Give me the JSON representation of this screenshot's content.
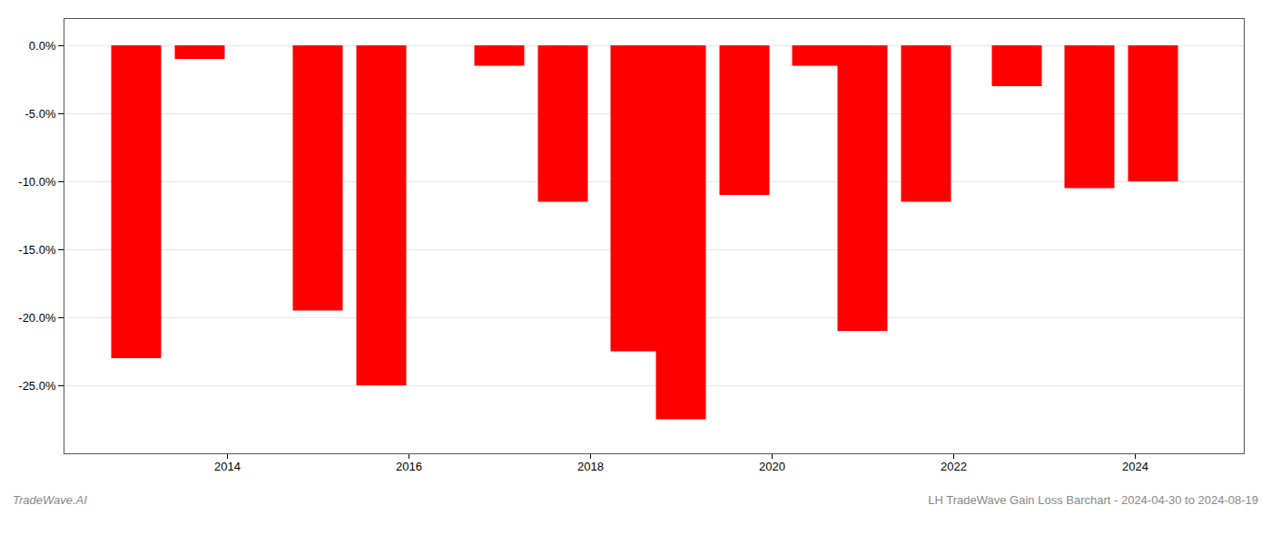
{
  "chart_data": {
    "type": "bar",
    "x": [
      2013,
      2013.7,
      2015,
      2015.7,
      2017,
      2017.7,
      2018.5,
      2019,
      2019.7,
      2020.5,
      2021,
      2021.7,
      2022.7,
      2023.5,
      2024.2
    ],
    "values": [
      -23.0,
      -1.0,
      -19.5,
      -25.0,
      -1.5,
      -11.5,
      -22.5,
      -27.5,
      -11.0,
      -1.5,
      -21.0,
      -11.5,
      -3.0,
      -10.5,
      -10.0
    ],
    "color": "#ff0000",
    "xlim": [
      2012.2,
      2025.2
    ],
    "xticks": [
      2014,
      2016,
      2018,
      2020,
      2022,
      2024
    ],
    "ylim": [
      -30,
      2
    ],
    "yticks": [
      {
        "value": 0,
        "label": "0.0%"
      },
      {
        "value": -5,
        "label": "-5.0%"
      },
      {
        "value": -10,
        "label": "-10.0%"
      },
      {
        "value": -15,
        "label": "-15.0%"
      },
      {
        "value": -20,
        "label": "-20.0%"
      },
      {
        "value": -25,
        "label": "-25.0%"
      }
    ],
    "grid": true,
    "annotations": [
      "TradeWave.AI",
      "LH TradeWave Gain Loss Barchart - 2024-04-30 to 2024-08-19"
    ]
  }
}
